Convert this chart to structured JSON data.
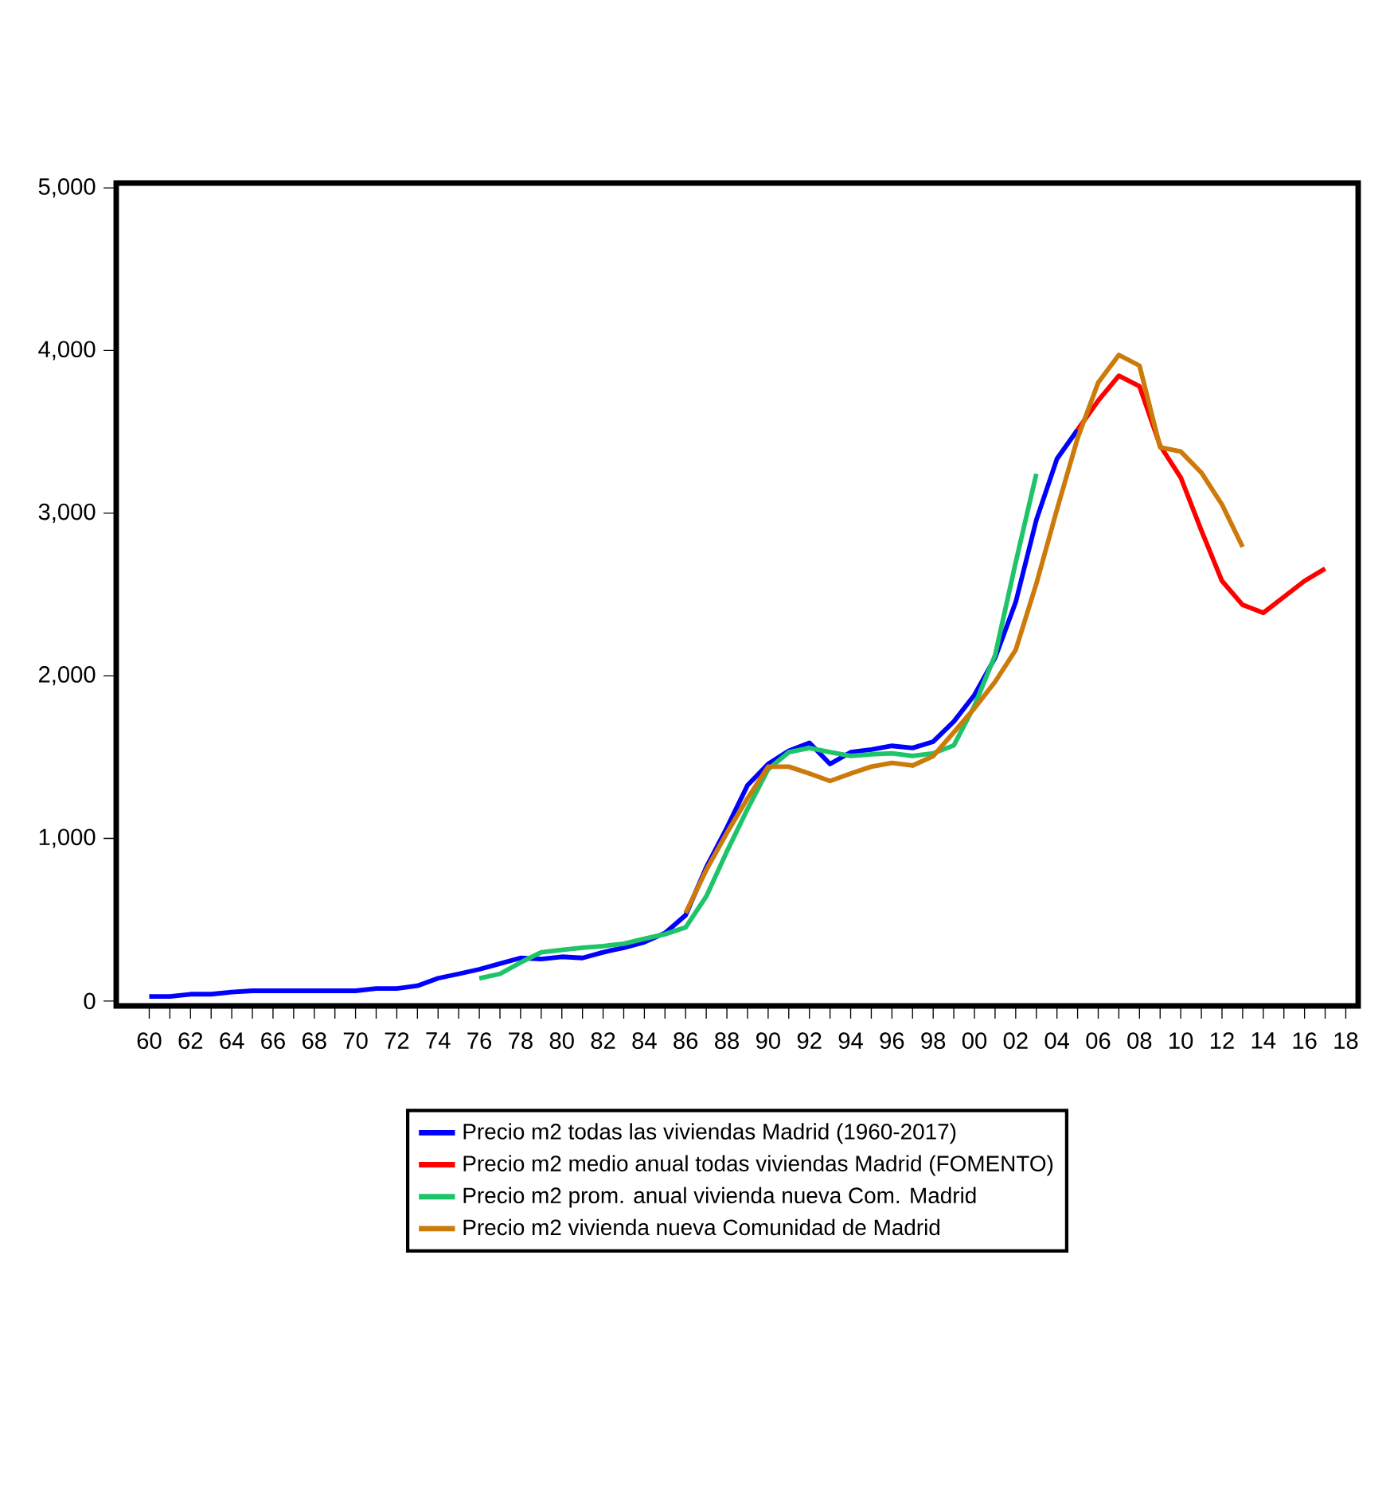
{
  "chart_data": {
    "type": "line",
    "legend": "bottom",
    "marker": "none",
    "line_style": "solid",
    "xlim": [
      1958.4,
      2018.6
    ],
    "ylim": [
      -30,
      5030
    ],
    "yticks": [
      {
        "value": 0,
        "label": "0"
      },
      {
        "value": 1000,
        "label": "1,000"
      },
      {
        "value": 2000,
        "label": "2,000"
      },
      {
        "value": 3000,
        "label": "3,000"
      },
      {
        "value": 4000,
        "label": "4,000"
      },
      {
        "value": 5000,
        "label": "5,000"
      }
    ],
    "xticks": [
      {
        "value": 1960,
        "label": "60"
      },
      {
        "value": 1961,
        "label": null
      },
      {
        "value": 1962,
        "label": "62"
      },
      {
        "value": 1963,
        "label": null
      },
      {
        "value": 1964,
        "label": "64"
      },
      {
        "value": 1965,
        "label": null
      },
      {
        "value": 1966,
        "label": "66"
      },
      {
        "value": 1967,
        "label": null
      },
      {
        "value": 1968,
        "label": "68"
      },
      {
        "value": 1969,
        "label": null
      },
      {
        "value": 1970,
        "label": "70"
      },
      {
        "value": 1971,
        "label": null
      },
      {
        "value": 1972,
        "label": "72"
      },
      {
        "value": 1973,
        "label": null
      },
      {
        "value": 1974,
        "label": "74"
      },
      {
        "value": 1975,
        "label": null
      },
      {
        "value": 1976,
        "label": "76"
      },
      {
        "value": 1977,
        "label": null
      },
      {
        "value": 1978,
        "label": "78"
      },
      {
        "value": 1979,
        "label": null
      },
      {
        "value": 1980,
        "label": "80"
      },
      {
        "value": 1981,
        "label": null
      },
      {
        "value": 1982,
        "label": "82"
      },
      {
        "value": 1983,
        "label": null
      },
      {
        "value": 1984,
        "label": "84"
      },
      {
        "value": 1985,
        "label": null
      },
      {
        "value": 1986,
        "label": "86"
      },
      {
        "value": 1987,
        "label": null
      },
      {
        "value": 1988,
        "label": "88"
      },
      {
        "value": 1989,
        "label": null
      },
      {
        "value": 1990,
        "label": "90"
      },
      {
        "value": 1991,
        "label": null
      },
      {
        "value": 1992,
        "label": "92"
      },
      {
        "value": 1993,
        "label": null
      },
      {
        "value": 1994,
        "label": "94"
      },
      {
        "value": 1995,
        "label": null
      },
      {
        "value": 1996,
        "label": "96"
      },
      {
        "value": 1997,
        "label": null
      },
      {
        "value": 1998,
        "label": "98"
      },
      {
        "value": 1999,
        "label": null
      },
      {
        "value": 2000,
        "label": "00"
      },
      {
        "value": 2001,
        "label": null
      },
      {
        "value": 2002,
        "label": "02"
      },
      {
        "value": 2003,
        "label": null
      },
      {
        "value": 2004,
        "label": "04"
      },
      {
        "value": 2005,
        "label": null
      },
      {
        "value": 2006,
        "label": "06"
      },
      {
        "value": 2007,
        "label": null
      },
      {
        "value": 2008,
        "label": "08"
      },
      {
        "value": 2009,
        "label": null
      },
      {
        "value": 2010,
        "label": "10"
      },
      {
        "value": 2011,
        "label": null
      },
      {
        "value": 2012,
        "label": "12"
      },
      {
        "value": 2013,
        "label": null
      },
      {
        "value": 2014,
        "label": "14"
      },
      {
        "value": 2015,
        "label": null
      },
      {
        "value": 2016,
        "label": "16"
      },
      {
        "value": 2017,
        "label": null
      },
      {
        "value": 2018,
        "label": "18"
      }
    ],
    "series": [
      {
        "name": "Precio m2 todas las viviendas Madrid (1960-2017)",
        "color": "#0000ff",
        "x": [
          1960,
          1961,
          1962,
          1963,
          1964,
          1965,
          1966,
          1967,
          1968,
          1969,
          1970,
          1971,
          1972,
          1973,
          1974,
          1975,
          1976,
          1977,
          1978,
          1979,
          1980,
          1981,
          1982,
          1983,
          1984,
          1985,
          1986,
          1987,
          1988,
          1989,
          1990,
          1991,
          1992,
          1993,
          1994,
          1995,
          1996,
          1997,
          1998,
          1999,
          2000,
          2001,
          2002,
          2003,
          2004,
          2005
        ],
        "values": [
          28,
          28,
          42,
          42,
          55,
          63,
          63,
          63,
          63,
          63,
          63,
          77,
          77,
          94,
          140,
          167,
          195,
          230,
          265,
          258,
          272,
          265,
          300,
          328,
          362,
          418,
          528,
          822,
          1066,
          1327,
          1458,
          1539,
          1588,
          1458,
          1530,
          1546,
          1569,
          1556,
          1595,
          1719,
          1882,
          2110,
          2453,
          2958,
          3334,
          3513
        ]
      },
      {
        "name": "Precio m2 medio anual todas viviendas Madrid (FOMENTO)",
        "color": "#ff0000",
        "x": [
          2005,
          2006,
          2007,
          2008,
          2009,
          2010,
          2011,
          2012,
          2013,
          2014,
          2015,
          2016,
          2017
        ],
        "values": [
          3513,
          3692,
          3845,
          3780,
          3415,
          3219,
          2893,
          2583,
          2436,
          2387,
          2485,
          2583,
          2659
        ]
      },
      {
        "name": "Precio m2 prom. anual vivienda nueva Com. Madrid",
        "color": "#1ec46a",
        "x": [
          1976,
          1977,
          1978,
          1979,
          1980,
          1981,
          1982,
          1983,
          1984,
          1985,
          1986,
          1987,
          1988,
          1989,
          1990,
          1991,
          1992,
          1993,
          1994,
          1995,
          1996,
          1997,
          1998,
          1999,
          2000,
          2001,
          2002,
          2003
        ],
        "values": [
          139,
          167,
          237,
          300,
          314,
          328,
          338,
          352,
          383,
          411,
          453,
          643,
          920,
          1181,
          1425,
          1530,
          1556,
          1530,
          1507,
          1517,
          1523,
          1507,
          1523,
          1572,
          1816,
          2126,
          2697,
          3242
        ]
      },
      {
        "name": "Precio m2 vivienda nueva Comunidad de Madrid",
        "color": "#cc7a0a",
        "x": [
          1986,
          1987,
          1988,
          1989,
          1990,
          1991,
          1992,
          1993,
          1994,
          1995,
          1996,
          1997,
          1998,
          1999,
          2000,
          2001,
          2002,
          2003,
          2004,
          2005,
          2006,
          2007,
          2008,
          2009,
          2010,
          2011,
          2012,
          2013
        ],
        "values": [
          541,
          806,
          1034,
          1246,
          1441,
          1441,
          1399,
          1353,
          1399,
          1441,
          1464,
          1448,
          1506,
          1653,
          1800,
          1963,
          2159,
          2566,
          3022,
          3461,
          3803,
          3973,
          3907,
          3405,
          3379,
          3249,
          3053,
          2792
        ]
      }
    ]
  }
}
